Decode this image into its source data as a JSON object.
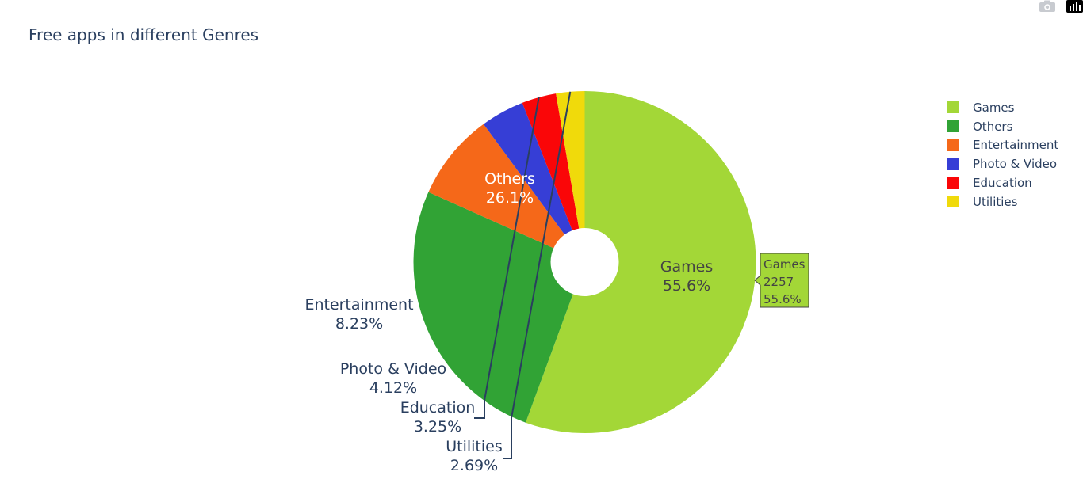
{
  "chart_data": {
    "type": "pie",
    "title": "Free apps in different Genres",
    "hole": true,
    "labels": [
      "Games",
      "Others",
      "Entertainment",
      "Photo & Video",
      "Education",
      "Utilities"
    ],
    "percent_labels": [
      "55.6%",
      "26.1%",
      "8.23%",
      "4.12%",
      "3.25%",
      "2.69%"
    ],
    "percents": [
      55.6,
      26.1,
      8.23,
      4.12,
      3.25,
      2.69
    ],
    "colors": [
      "#a3d737",
      "#31a335",
      "#f56819",
      "#363ed6",
      "#fa0608",
      "#f0da0b"
    ],
    "label_colors": [
      "#444444",
      "#ffffff",
      "#2a3f5f",
      "#2a3f5f",
      "#2a3f5f",
      "#2a3f5f"
    ],
    "legend_position": "top-right",
    "hover": {
      "label": "Games",
      "value": "2257",
      "percent": "55.6%"
    }
  },
  "modebar": {
    "camera_icon": "camera-icon",
    "plotly_logo": "plotly-logo-icon"
  }
}
